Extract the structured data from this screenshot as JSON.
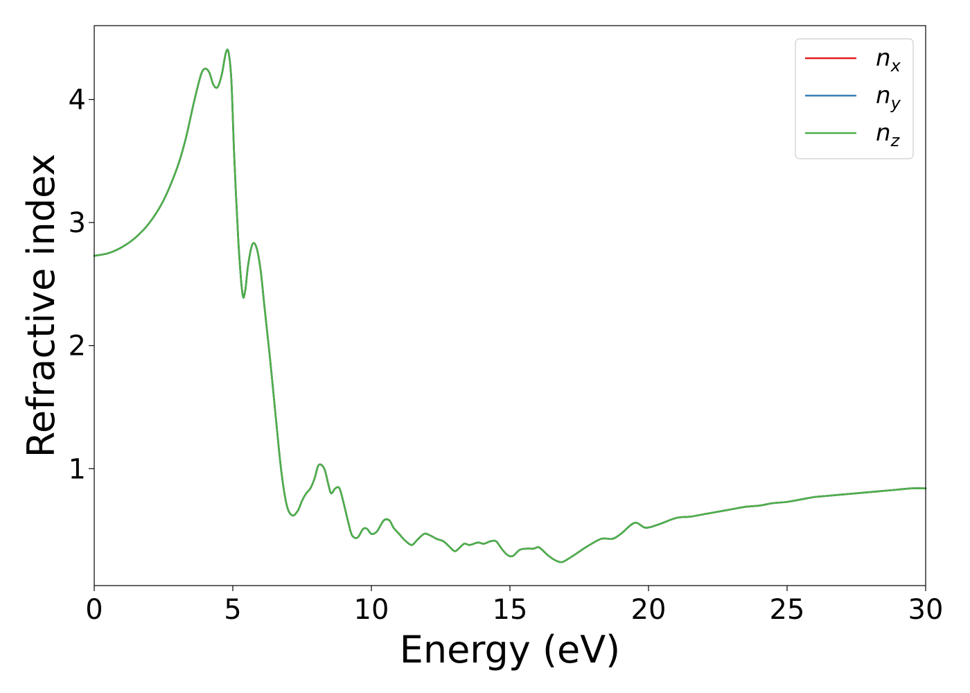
{
  "chart_data": {
    "type": "line",
    "xlabel": "Energy (eV)",
    "ylabel": "Refractive index",
    "xlim": [
      0,
      30
    ],
    "ylim": [
      0.05,
      4.6
    ],
    "xticks": [
      "0",
      "5",
      "10",
      "15",
      "20",
      "25",
      "30"
    ],
    "yticks": [
      "1",
      "2",
      "3",
      "4"
    ],
    "grid": false,
    "legend_position": "top-right",
    "x": [
      0,
      0.5,
      1.0,
      1.5,
      2.0,
      2.5,
      3.0,
      3.3,
      3.6,
      3.85,
      4.0,
      4.15,
      4.3,
      4.45,
      4.6,
      4.75,
      4.85,
      4.95,
      5.05,
      5.2,
      5.35,
      5.45,
      5.55,
      5.7,
      5.85,
      6.0,
      6.15,
      6.35,
      6.55,
      6.75,
      6.95,
      7.15,
      7.35,
      7.5,
      7.65,
      7.8,
      7.95,
      8.1,
      8.3,
      8.45,
      8.55,
      8.7,
      8.85,
      9.0,
      9.15,
      9.3,
      9.5,
      9.7,
      9.85,
      10.0,
      10.2,
      10.45,
      10.65,
      10.8,
      11.0,
      11.2,
      11.45,
      11.65,
      11.9,
      12.1,
      12.35,
      12.6,
      12.8,
      13.0,
      13.15,
      13.35,
      13.55,
      13.85,
      14.05,
      14.3,
      14.5,
      14.7,
      14.9,
      15.1,
      15.35,
      15.6,
      15.85,
      16.05,
      16.35,
      16.6,
      16.85,
      17.05,
      17.4,
      17.8,
      18.3,
      18.7,
      19.0,
      19.5,
      19.9,
      20.4,
      21.0,
      21.5,
      22.0,
      22.5,
      23.0,
      23.5,
      24.0,
      24.5,
      25.0,
      25.5,
      26.0,
      26.5,
      27.0,
      27.5,
      28.0,
      28.5,
      29.0,
      29.5,
      30.0
    ],
    "series": [
      {
        "name": "n_x",
        "color": "#e41a1c",
        "y": [
          2.73,
          2.75,
          2.8,
          2.88,
          3.0,
          3.18,
          3.45,
          3.68,
          3.98,
          4.2,
          4.25,
          4.22,
          4.12,
          4.1,
          4.2,
          4.38,
          4.38,
          4.15,
          3.55,
          2.85,
          2.42,
          2.45,
          2.65,
          2.82,
          2.8,
          2.62,
          2.3,
          1.88,
          1.42,
          0.98,
          0.7,
          0.62,
          0.66,
          0.74,
          0.8,
          0.84,
          0.92,
          1.03,
          1.0,
          0.87,
          0.8,
          0.84,
          0.84,
          0.72,
          0.58,
          0.46,
          0.44,
          0.51,
          0.51,
          0.47,
          0.49,
          0.58,
          0.58,
          0.52,
          0.47,
          0.42,
          0.38,
          0.42,
          0.47,
          0.46,
          0.43,
          0.41,
          0.37,
          0.33,
          0.35,
          0.39,
          0.38,
          0.4,
          0.39,
          0.41,
          0.41,
          0.35,
          0.3,
          0.29,
          0.34,
          0.35,
          0.35,
          0.36,
          0.3,
          0.26,
          0.24,
          0.26,
          0.31,
          0.37,
          0.43,
          0.43,
          0.47,
          0.56,
          0.52,
          0.55,
          0.6,
          0.61,
          0.63,
          0.65,
          0.67,
          0.69,
          0.7,
          0.72,
          0.73,
          0.75,
          0.77,
          0.78,
          0.79,
          0.8,
          0.81,
          0.82,
          0.83,
          0.84,
          0.84
        ]
      },
      {
        "name": "n_y",
        "color": "#377eb8",
        "y": [
          2.73,
          2.75,
          2.8,
          2.88,
          3.0,
          3.18,
          3.45,
          3.68,
          3.98,
          4.2,
          4.25,
          4.22,
          4.12,
          4.1,
          4.2,
          4.38,
          4.38,
          4.15,
          3.55,
          2.85,
          2.42,
          2.45,
          2.65,
          2.82,
          2.8,
          2.62,
          2.3,
          1.88,
          1.42,
          0.98,
          0.7,
          0.62,
          0.66,
          0.74,
          0.8,
          0.84,
          0.92,
          1.03,
          1.0,
          0.87,
          0.8,
          0.84,
          0.84,
          0.72,
          0.58,
          0.46,
          0.44,
          0.51,
          0.51,
          0.47,
          0.49,
          0.58,
          0.58,
          0.52,
          0.47,
          0.42,
          0.38,
          0.42,
          0.47,
          0.46,
          0.43,
          0.41,
          0.37,
          0.33,
          0.35,
          0.39,
          0.38,
          0.4,
          0.39,
          0.41,
          0.41,
          0.35,
          0.3,
          0.29,
          0.34,
          0.35,
          0.35,
          0.36,
          0.3,
          0.26,
          0.24,
          0.26,
          0.31,
          0.37,
          0.43,
          0.43,
          0.47,
          0.56,
          0.52,
          0.55,
          0.6,
          0.61,
          0.63,
          0.65,
          0.67,
          0.69,
          0.7,
          0.72,
          0.73,
          0.75,
          0.77,
          0.78,
          0.79,
          0.8,
          0.81,
          0.82,
          0.83,
          0.84,
          0.84
        ]
      },
      {
        "name": "n_z",
        "color": "#4daf4a",
        "y": [
          2.73,
          2.75,
          2.8,
          2.88,
          3.0,
          3.18,
          3.45,
          3.68,
          3.98,
          4.2,
          4.25,
          4.22,
          4.12,
          4.1,
          4.2,
          4.38,
          4.38,
          4.15,
          3.55,
          2.85,
          2.42,
          2.45,
          2.65,
          2.82,
          2.8,
          2.62,
          2.3,
          1.88,
          1.42,
          0.98,
          0.7,
          0.62,
          0.66,
          0.74,
          0.8,
          0.84,
          0.92,
          1.03,
          1.0,
          0.87,
          0.8,
          0.84,
          0.84,
          0.72,
          0.58,
          0.46,
          0.44,
          0.51,
          0.51,
          0.47,
          0.49,
          0.58,
          0.58,
          0.52,
          0.47,
          0.42,
          0.38,
          0.42,
          0.47,
          0.46,
          0.43,
          0.41,
          0.37,
          0.33,
          0.35,
          0.39,
          0.38,
          0.4,
          0.39,
          0.41,
          0.41,
          0.35,
          0.3,
          0.29,
          0.34,
          0.35,
          0.35,
          0.36,
          0.3,
          0.26,
          0.24,
          0.26,
          0.31,
          0.37,
          0.43,
          0.43,
          0.47,
          0.56,
          0.52,
          0.55,
          0.6,
          0.61,
          0.63,
          0.65,
          0.67,
          0.69,
          0.7,
          0.72,
          0.73,
          0.75,
          0.77,
          0.78,
          0.79,
          0.8,
          0.81,
          0.82,
          0.83,
          0.84,
          0.84
        ]
      }
    ],
    "legend": [
      {
        "base": "n",
        "sub": "x",
        "color": "#e41a1c"
      },
      {
        "base": "n",
        "sub": "y",
        "color": "#377eb8"
      },
      {
        "base": "n",
        "sub": "z",
        "color": "#4daf4a"
      }
    ]
  }
}
